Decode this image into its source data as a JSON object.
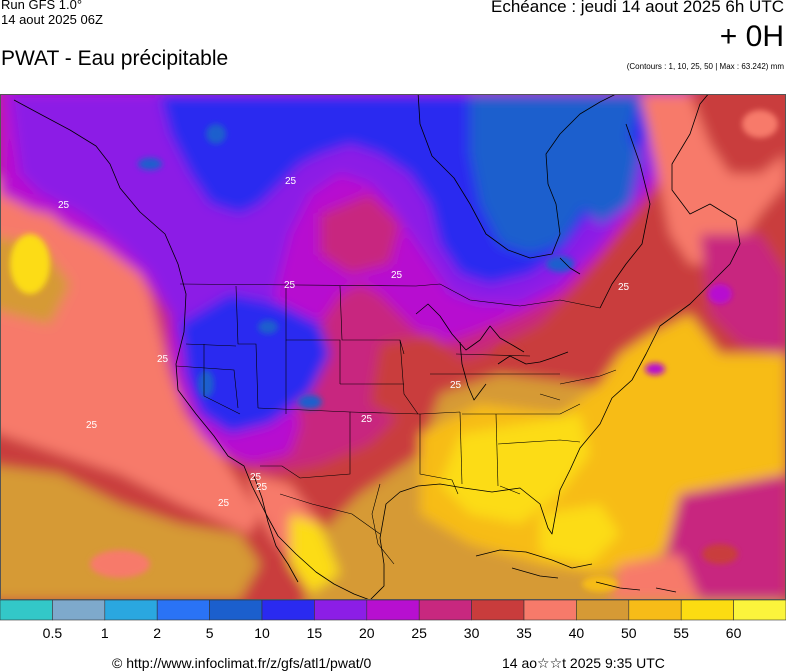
{
  "header": {
    "run_model": "Run GFS 1.0°",
    "run_date": "14 aout 2025 06Z",
    "product_title": "PWAT - Eau précipitable",
    "forecast_time": "Echéance : jeudi 14 aout 2025 6h UTC",
    "lead_time": "+ 0H",
    "contours_info": "(Contours : 1, 10, 25, 50 | Max : 63.242) mm"
  },
  "map": {
    "contour_label": "25",
    "contour_label_count": 12
  },
  "legend": {
    "colors": [
      "#33c8c8",
      "#7ea9cc",
      "#2aa7e0",
      "#2a73f5",
      "#1b5fcd",
      "#2a2af0",
      "#8c1ee6",
      "#b70fd0",
      "#c8287f",
      "#c93c3c",
      "#f77a6a",
      "#d69a35",
      "#f7bc18",
      "#fcdc12",
      "#fbf43c"
    ],
    "thresholds": [
      "0.5",
      "1",
      "2",
      "5",
      "10",
      "15",
      "20",
      "25",
      "30",
      "35",
      "40",
      "50",
      "55",
      "60"
    ]
  },
  "footer": {
    "copyright": "© http://www.infoclimat.fr/z/gfs/atl1/pwat/0",
    "render_time": "14 ao☆☆t 2025  9:35 UTC"
  }
}
